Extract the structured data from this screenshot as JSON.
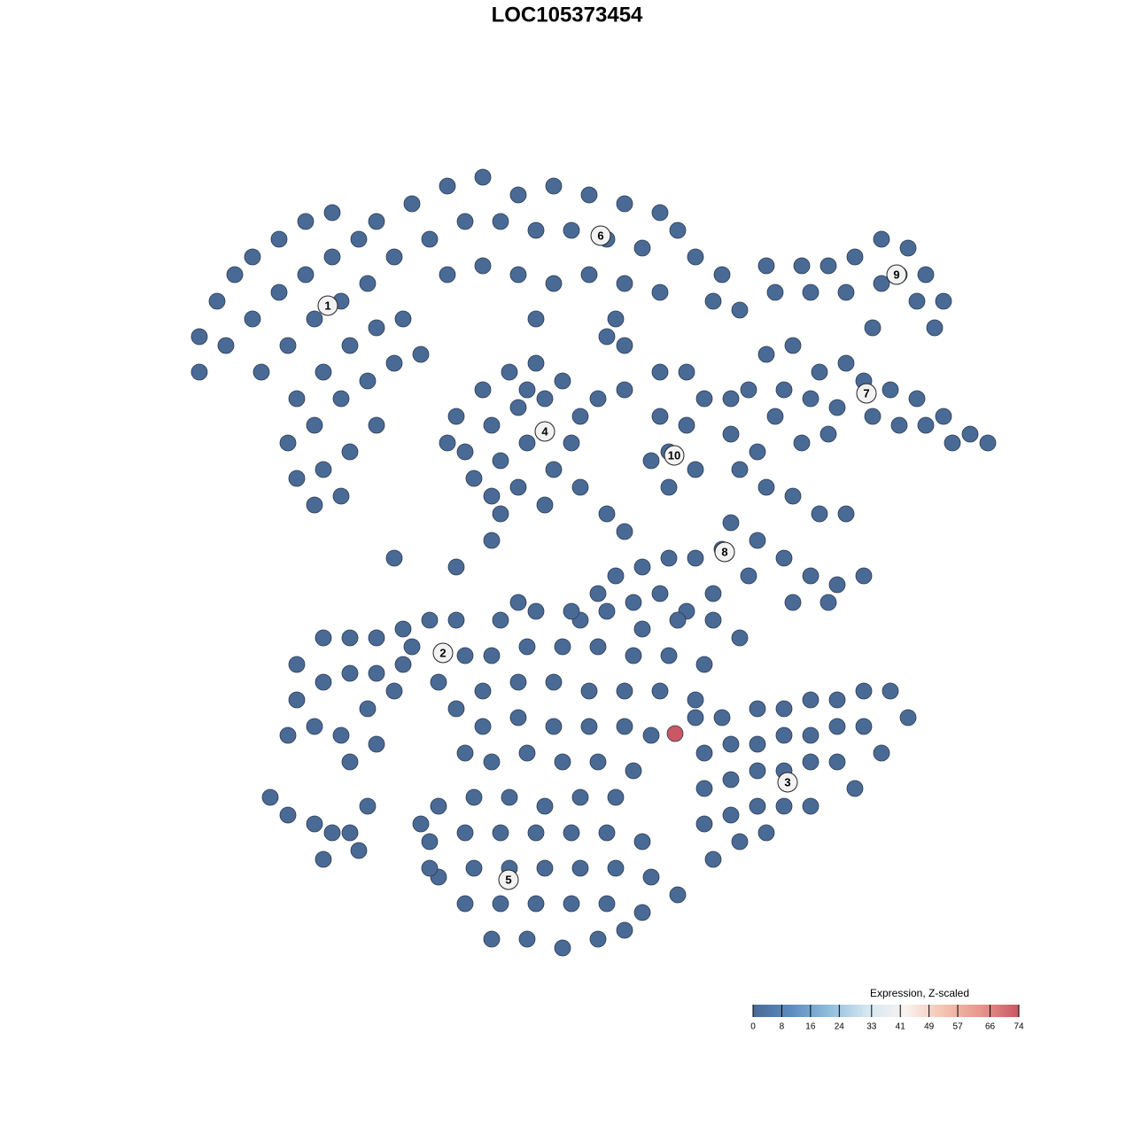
{
  "chart_data": {
    "type": "scatter",
    "title": "LOC105373454",
    "xlim": [
      -47.5,
      47.5
    ],
    "ylim": [
      -47,
      47
    ],
    "colorbar": {
      "title": "Expression, Z-scaled",
      "lim": [
        0,
        74
      ],
      "ticks": [
        0,
        8,
        16,
        24,
        33,
        41,
        49,
        57,
        66,
        74
      ],
      "colors": [
        "#4a6a96",
        "#5b8cbe",
        "#8fbddb",
        "#d4e6f1",
        "#f8f3f1",
        "#f4c4b1",
        "#e7968b",
        "#c95764"
      ]
    },
    "points": [
      [
        -44,
        22,
        0
      ],
      [
        -44,
        26,
        0
      ],
      [
        -42,
        30,
        0
      ],
      [
        -40,
        33,
        0
      ],
      [
        -38,
        35,
        0
      ],
      [
        -35,
        37,
        0
      ],
      [
        -32,
        39,
        0
      ],
      [
        -29,
        40,
        0
      ],
      [
        -41,
        25,
        0
      ],
      [
        -38,
        28,
        0
      ],
      [
        -35,
        31,
        0
      ],
      [
        -32,
        33,
        0
      ],
      [
        -29,
        35,
        0
      ],
      [
        -26,
        37,
        0
      ],
      [
        -37,
        22,
        0
      ],
      [
        -34,
        25,
        0
      ],
      [
        -31,
        28,
        0
      ],
      [
        -28,
        30,
        0
      ],
      [
        -25,
        32,
        0
      ],
      [
        -33,
        19,
        0
      ],
      [
        -30,
        22,
        0
      ],
      [
        -27,
        25,
        0
      ],
      [
        -24,
        27,
        0
      ],
      [
        -34,
        14,
        0
      ],
      [
        -31,
        16,
        0
      ],
      [
        -28,
        19,
        0
      ],
      [
        -25,
        21,
        0
      ],
      [
        -22,
        23,
        0
      ],
      [
        -33,
        10,
        0
      ],
      [
        -30,
        11,
        0
      ],
      [
        -27,
        13,
        0
      ],
      [
        -24,
        16,
        0
      ],
      [
        -31,
        7,
        0
      ],
      [
        -28,
        8,
        0
      ],
      [
        -21,
        28,
        0
      ],
      [
        -19,
        24,
        0
      ],
      [
        -24,
        39,
        0
      ],
      [
        -20,
        41,
        0
      ],
      [
        -16,
        43,
        0
      ],
      [
        -12,
        44,
        0
      ],
      [
        -8,
        42,
        0
      ],
      [
        -4,
        43,
        0
      ],
      [
        0,
        42,
        0
      ],
      [
        4,
        41,
        0
      ],
      [
        8,
        40,
        0
      ],
      [
        -22,
        35,
        0
      ],
      [
        -18,
        37,
        0
      ],
      [
        -14,
        39,
        0
      ],
      [
        -10,
        39,
        0
      ],
      [
        -6,
        38,
        0
      ],
      [
        -2,
        38,
        0
      ],
      [
        2,
        37,
        0
      ],
      [
        6,
        36,
        0
      ],
      [
        10,
        38,
        0
      ],
      [
        12,
        35,
        0
      ],
      [
        15,
        33,
        0
      ],
      [
        -16,
        33,
        0
      ],
      [
        -12,
        34,
        0
      ],
      [
        -8,
        33,
        0
      ],
      [
        -4,
        32,
        0
      ],
      [
        0,
        33,
        0
      ],
      [
        4,
        32,
        0
      ],
      [
        8,
        31,
        0
      ],
      [
        14,
        30,
        0
      ],
      [
        17,
        29,
        0
      ],
      [
        3,
        28,
        0
      ],
      [
        -6,
        28,
        0
      ],
      [
        2,
        26,
        0
      ],
      [
        4,
        25,
        0
      ],
      [
        -15,
        17,
        0
      ],
      [
        -12,
        20,
        0
      ],
      [
        -9,
        22,
        0
      ],
      [
        -6,
        23,
        0
      ],
      [
        -3,
        21,
        0
      ],
      [
        -1,
        17,
        0
      ],
      [
        -14,
        13,
        0
      ],
      [
        -11,
        16,
        0
      ],
      [
        -8,
        18,
        0
      ],
      [
        -5,
        19,
        0
      ],
      [
        -2,
        14,
        0
      ],
      [
        -13,
        10,
        0
      ],
      [
        -10,
        12,
        0
      ],
      [
        -7,
        14,
        0
      ],
      [
        -4,
        11,
        0
      ],
      [
        -1,
        9,
        0
      ],
      [
        -11,
        8,
        0
      ],
      [
        -8,
        9,
        0
      ],
      [
        -5,
        7,
        0
      ],
      [
        -7,
        20,
        0
      ],
      [
        -10,
        6,
        0
      ],
      [
        -16,
        14,
        0
      ],
      [
        8,
        22,
        0
      ],
      [
        11,
        22,
        0
      ],
      [
        13,
        19,
        0
      ],
      [
        8,
        17,
        0
      ],
      [
        11,
        16,
        0
      ],
      [
        9,
        13,
        0
      ],
      [
        12,
        11,
        0
      ],
      [
        9,
        9,
        0
      ],
      [
        1,
        19,
        0
      ],
      [
        4,
        20,
        0
      ],
      [
        7,
        12,
        0
      ],
      [
        21,
        31,
        0
      ],
      [
        24,
        34,
        0
      ],
      [
        27,
        34,
        0
      ],
      [
        30,
        35,
        0
      ],
      [
        33,
        37,
        0
      ],
      [
        36,
        36,
        0
      ],
      [
        38,
        33,
        0
      ],
      [
        40,
        30,
        0
      ],
      [
        25,
        31,
        0
      ],
      [
        29,
        31,
        0
      ],
      [
        33,
        32,
        0
      ],
      [
        37,
        30,
        0
      ],
      [
        39,
        27,
        0
      ],
      [
        35,
        33,
        0
      ],
      [
        20,
        34,
        0
      ],
      [
        32,
        27,
        0
      ],
      [
        20,
        24,
        0
      ],
      [
        23,
        25,
        0
      ],
      [
        26,
        22,
        0
      ],
      [
        29,
        23,
        0
      ],
      [
        31,
        21,
        0
      ],
      [
        34,
        20,
        0
      ],
      [
        37,
        19,
        0
      ],
      [
        40,
        17,
        0
      ],
      [
        43,
        15,
        0
      ],
      [
        45,
        14,
        0
      ],
      [
        22,
        20,
        0
      ],
      [
        25,
        19,
        0
      ],
      [
        28,
        18,
        0
      ],
      [
        32,
        17,
        0
      ],
      [
        35,
        16,
        0
      ],
      [
        38,
        16,
        0
      ],
      [
        41,
        14,
        0
      ],
      [
        21,
        17,
        0
      ],
      [
        24,
        14,
        0
      ],
      [
        27,
        15,
        0
      ],
      [
        18,
        20,
        0
      ],
      [
        16,
        19,
        0
      ],
      [
        17,
        11,
        0
      ],
      [
        20,
        9,
        0
      ],
      [
        23,
        8,
        0
      ],
      [
        26,
        6,
        0
      ],
      [
        29,
        6,
        0
      ],
      [
        16,
        5,
        0
      ],
      [
        19,
        3,
        0
      ],
      [
        22,
        1,
        0
      ],
      [
        25,
        -1,
        0
      ],
      [
        28,
        -2,
        0
      ],
      [
        31,
        -1,
        0
      ],
      [
        23,
        -4,
        0
      ],
      [
        27,
        -4,
        0
      ],
      [
        18,
        -1,
        0
      ],
      [
        15,
        2,
        0
      ],
      [
        12,
        1,
        0
      ],
      [
        9,
        1,
        0
      ],
      [
        6,
        0,
        0
      ],
      [
        3,
        -1,
        0
      ],
      [
        5,
        -4,
        0
      ],
      [
        8,
        -3,
        0
      ],
      [
        11,
        -5,
        0
      ],
      [
        14,
        -3,
        0
      ],
      [
        1,
        -3,
        0
      ],
      [
        -1,
        -6,
        0
      ],
      [
        16,
        15,
        0
      ],
      [
        19,
        13,
        0
      ],
      [
        -33,
        -11,
        0
      ],
      [
        -30,
        -8,
        0
      ],
      [
        -27,
        -8,
        0
      ],
      [
        -24,
        -8,
        0
      ],
      [
        -21,
        -7,
        0
      ],
      [
        -18,
        -6,
        0
      ],
      [
        -15,
        -6,
        0
      ],
      [
        -33,
        -15,
        0
      ],
      [
        -30,
        -13,
        0
      ],
      [
        -27,
        -12,
        0
      ],
      [
        -24,
        -12,
        0
      ],
      [
        -21,
        -11,
        0
      ],
      [
        -34,
        -19,
        0
      ],
      [
        -31,
        -18,
        0
      ],
      [
        -28,
        -19,
        0
      ],
      [
        -25,
        -16,
        0
      ],
      [
        -22,
        -14,
        0
      ],
      [
        -27,
        -22,
        0
      ],
      [
        -24,
        -20,
        0
      ],
      [
        -17,
        -13,
        0
      ],
      [
        -14,
        -10,
        0
      ],
      [
        -20,
        -9,
        0
      ],
      [
        -10,
        -6,
        0
      ],
      [
        -6,
        -5,
        0
      ],
      [
        -2,
        -5,
        0
      ],
      [
        2,
        -5,
        0
      ],
      [
        6,
        -7,
        0
      ],
      [
        10,
        -6,
        0
      ],
      [
        14,
        -6,
        0
      ],
      [
        17,
        -8,
        0
      ],
      [
        -11,
        -10,
        0
      ],
      [
        -7,
        -9,
        0
      ],
      [
        -3,
        -9,
        0
      ],
      [
        1,
        -9,
        0
      ],
      [
        5,
        -10,
        0
      ],
      [
        9,
        -10,
        0
      ],
      [
        13,
        -11,
        0
      ],
      [
        -12,
        -14,
        0
      ],
      [
        -8,
        -13,
        0
      ],
      [
        -4,
        -13,
        0
      ],
      [
        0,
        -14,
        0
      ],
      [
        4,
        -14,
        0
      ],
      [
        8,
        -14,
        0
      ],
      [
        12,
        -15,
        0
      ],
      [
        -12,
        -18,
        0
      ],
      [
        -8,
        -17,
        0
      ],
      [
        -4,
        -18,
        0
      ],
      [
        0,
        -18,
        0
      ],
      [
        4,
        -18,
        0
      ],
      [
        7,
        -19,
        0
      ],
      [
        -11,
        -22,
        0
      ],
      [
        -7,
        -21,
        0
      ],
      [
        -3,
        -22,
        0
      ],
      [
        1,
        -22,
        0
      ],
      [
        5,
        -23,
        0
      ],
      [
        -15,
        -16,
        0
      ],
      [
        -14,
        -21,
        0
      ],
      [
        12,
        -17,
        0
      ],
      [
        15,
        -17,
        0
      ],
      [
        19,
        -16,
        0
      ],
      [
        22,
        -16,
        0
      ],
      [
        25,
        -15,
        0
      ],
      [
        28,
        -15,
        0
      ],
      [
        31,
        -14,
        0
      ],
      [
        34,
        -14,
        0
      ],
      [
        36,
        -17,
        0
      ],
      [
        13,
        -21,
        0
      ],
      [
        16,
        -20,
        0
      ],
      [
        19,
        -20,
        0
      ],
      [
        22,
        -19,
        0
      ],
      [
        25,
        -19,
        0
      ],
      [
        28,
        -18,
        0
      ],
      [
        31,
        -18,
        0
      ],
      [
        33,
        -21,
        0
      ],
      [
        13,
        -25,
        0
      ],
      [
        16,
        -24,
        0
      ],
      [
        19,
        -23,
        0
      ],
      [
        22,
        -23,
        0
      ],
      [
        25,
        -22,
        0
      ],
      [
        28,
        -22,
        0
      ],
      [
        30,
        -25,
        0
      ],
      [
        13,
        -29,
        0
      ],
      [
        16,
        -28,
        0
      ],
      [
        19,
        -27,
        0
      ],
      [
        22,
        -27,
        0
      ],
      [
        25,
        -27,
        0
      ],
      [
        14,
        -33,
        0
      ],
      [
        17,
        -31,
        0
      ],
      [
        20,
        -30,
        0
      ],
      [
        -17,
        -27,
        0
      ],
      [
        -13,
        -26,
        0
      ],
      [
        -9,
        -26,
        0
      ],
      [
        -5,
        -27,
        0
      ],
      [
        -1,
        -26,
        0
      ],
      [
        3,
        -26,
        0
      ],
      [
        -18,
        -31,
        0
      ],
      [
        -14,
        -30,
        0
      ],
      [
        -10,
        -30,
        0
      ],
      [
        -6,
        -30,
        0
      ],
      [
        -2,
        -30,
        0
      ],
      [
        2,
        -30,
        0
      ],
      [
        6,
        -31,
        0
      ],
      [
        -17,
        -35,
        0
      ],
      [
        -13,
        -34,
        0
      ],
      [
        -9,
        -34,
        0
      ],
      [
        -5,
        -34,
        0
      ],
      [
        -1,
        -34,
        0
      ],
      [
        3,
        -34,
        0
      ],
      [
        7,
        -35,
        0
      ],
      [
        10,
        -37,
        0
      ],
      [
        -14,
        -38,
        0
      ],
      [
        -10,
        -38,
        0
      ],
      [
        -6,
        -38,
        0
      ],
      [
        -2,
        -38,
        0
      ],
      [
        2,
        -38,
        0
      ],
      [
        6,
        -39,
        0
      ],
      [
        -11,
        -42,
        0
      ],
      [
        -7,
        -42,
        0
      ],
      [
        -3,
        -43,
        0
      ],
      [
        1,
        -42,
        0
      ],
      [
        4,
        -41,
        0
      ],
      [
        -19,
        -29,
        0
      ],
      [
        -18,
        -34,
        0
      ],
      [
        -36,
        -26,
        0
      ],
      [
        -34,
        -28,
        0
      ],
      [
        -31,
        -29,
        0
      ],
      [
        -29,
        -30,
        0
      ],
      [
        -27,
        -30,
        0
      ],
      [
        -30,
        -33,
        0
      ],
      [
        -25,
        -27,
        0
      ],
      [
        -26,
        -32,
        0
      ],
      [
        -22,
        1,
        0
      ],
      [
        -15,
        0,
        0
      ],
      [
        -8,
        -4,
        0
      ],
      [
        2,
        6,
        0
      ],
      [
        4,
        4,
        0
      ],
      [
        -11,
        3,
        0
      ],
      [
        9.7,
        -18.8,
        74
      ]
    ],
    "labels": [
      {
        "text": "1",
        "x": -29.5,
        "y": 29.5
      },
      {
        "text": "2",
        "x": -16.5,
        "y": -9.7
      },
      {
        "text": "3",
        "x": 22.4,
        "y": -24.3
      },
      {
        "text": "4",
        "x": -5,
        "y": 15.3
      },
      {
        "text": "5",
        "x": -9.1,
        "y": -35.3
      },
      {
        "text": "6",
        "x": 1.3,
        "y": 37.4
      },
      {
        "text": "7",
        "x": 31.3,
        "y": 19.6
      },
      {
        "text": "8",
        "x": 15.3,
        "y": 1.7
      },
      {
        "text": "9",
        "x": 34.7,
        "y": 33
      },
      {
        "text": "10",
        "x": 9.6,
        "y": 12.6
      }
    ]
  }
}
